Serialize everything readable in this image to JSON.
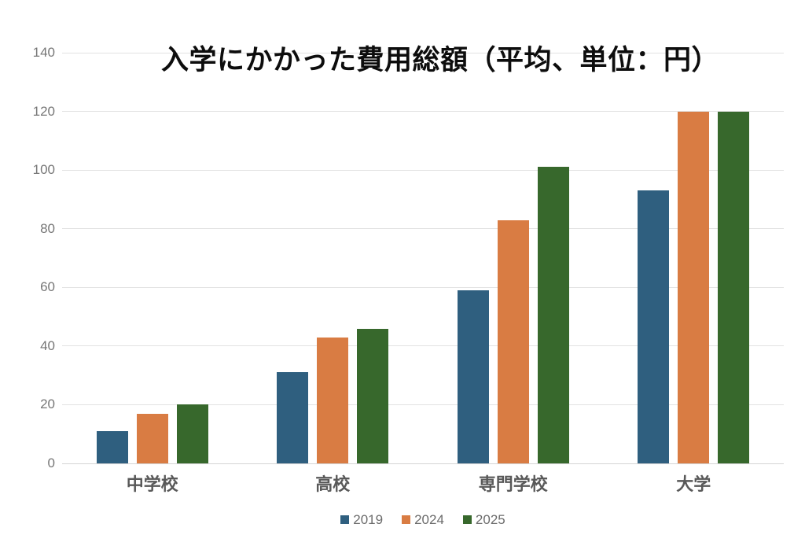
{
  "chart_data": {
    "type": "bar",
    "title": "入学にかかった費用総額（平均、単位：円）",
    "categories": [
      "中学校",
      "高校",
      "専門学校",
      "大学"
    ],
    "series": [
      {
        "name": "2019",
        "color": "#2F5F7F",
        "values": [
          11,
          31,
          59,
          93
        ]
      },
      {
        "name": "2024",
        "color": "#D97C43",
        "values": [
          17,
          43,
          83,
          120
        ]
      },
      {
        "name": "2025",
        "color": "#37682C",
        "values": [
          20,
          46,
          101,
          120
        ]
      }
    ],
    "xlabel": "",
    "ylabel": "",
    "ylim": [
      0,
      140
    ],
    "yticks": [
      0,
      20,
      40,
      60,
      80,
      100,
      120,
      140
    ],
    "grid": true,
    "legend_position": "bottom",
    "background_color": "#ffffff",
    "gridline_color": "#e2e2e2",
    "tick_label_color": "#767676",
    "category_label_color": "#595959"
  }
}
